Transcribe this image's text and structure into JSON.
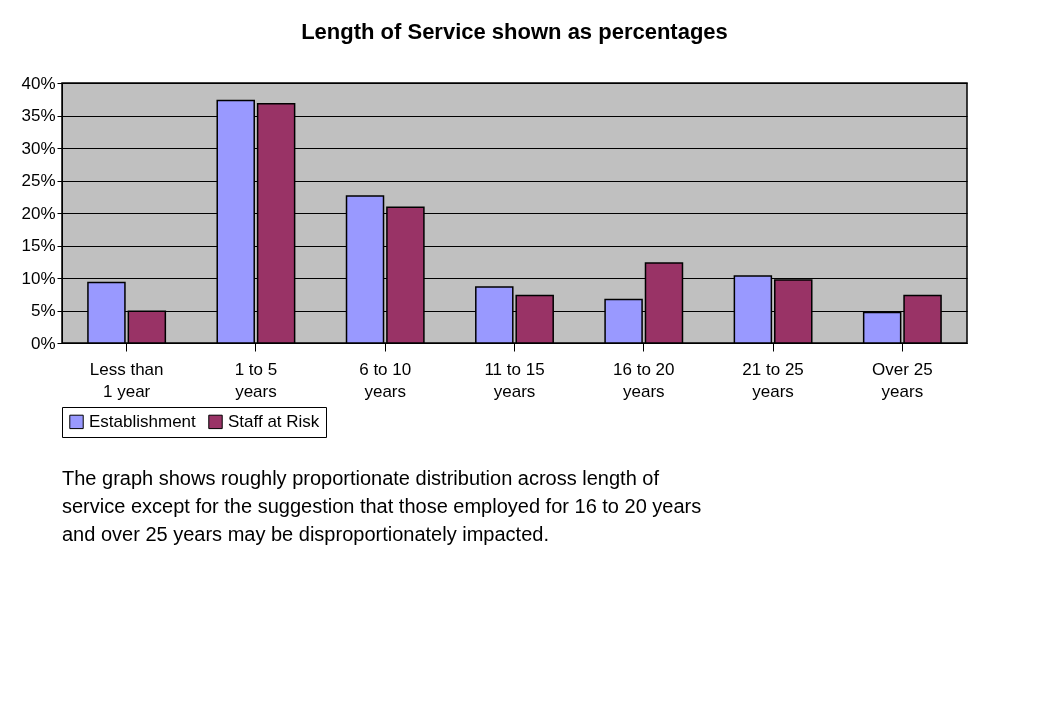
{
  "chart_data": {
    "type": "bar",
    "title": "Length of Service shown as percentages",
    "categories": [
      "Less than\n1 year",
      "1 to 5\nyears",
      "6 to 10\nyears",
      "11 to 15\nyears",
      "16 to 20\nyears",
      "21 to 25\nyears",
      "Over 25\nyears"
    ],
    "series": [
      {
        "name": "Establishment",
        "color": "#9999ff",
        "values": [
          9.3,
          37.3,
          22.6,
          8.6,
          6.7,
          10.3,
          4.7
        ]
      },
      {
        "name": "Staff at Risk",
        "color": "#993366",
        "values": [
          4.9,
          36.8,
          20.9,
          7.3,
          12.3,
          9.7,
          7.3
        ]
      }
    ],
    "ylim": [
      0,
      40
    ],
    "yticks": [
      {
        "value": 0,
        "label": "0%"
      },
      {
        "value": 5,
        "label": "5%"
      },
      {
        "value": 10,
        "label": "10%"
      },
      {
        "value": 15,
        "label": "15%"
      },
      {
        "value": 20,
        "label": "20%"
      },
      {
        "value": 25,
        "label": "25%"
      },
      {
        "value": 30,
        "label": "30%"
      },
      {
        "value": 35,
        "label": "35%"
      },
      {
        "value": 40,
        "label": "40%"
      }
    ],
    "grid": "y",
    "legend": "bottom",
    "annotations": [
      "The graph shows roughly proportionate distribution across length of service except for the suggestion that those employed for 16 to 20 years and over 25 years may be disproportionately impacted."
    ]
  }
}
